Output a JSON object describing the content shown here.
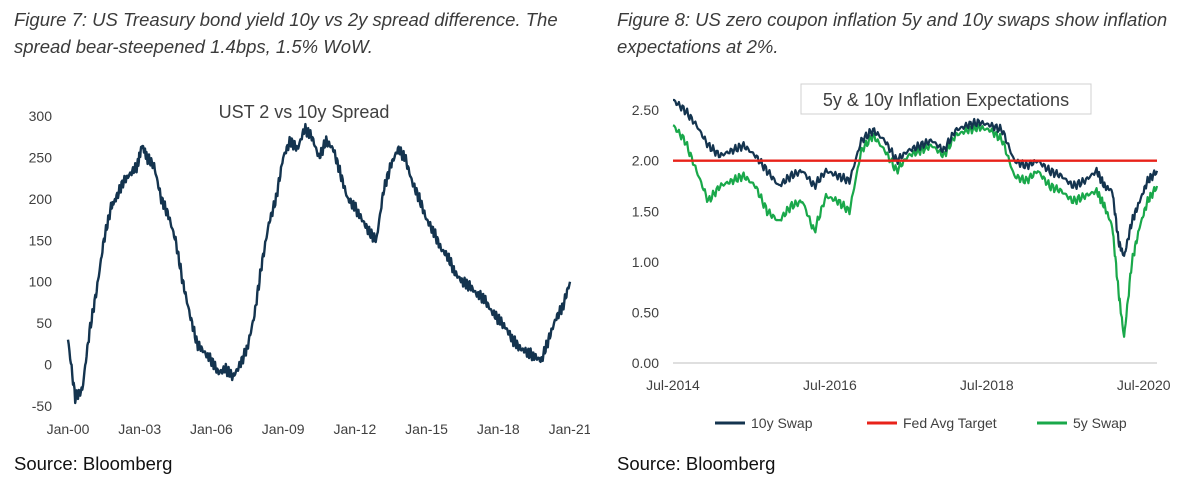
{
  "figures": [
    {
      "caption": "Figure 7: US Treasury bond yield 10y vs 2y spread difference. The spread bear-steepened 1.4bps, 1.5% WoW.",
      "source": "Source: Bloomberg"
    },
    {
      "caption": "Figure 8: US zero coupon inflation 5y and 10y swaps show inflation expectations at 2%.",
      "source": "Source: Bloomberg"
    }
  ],
  "chart_data": [
    {
      "type": "line",
      "title": "UST 2 vs 10y Spread",
      "xlabel": "",
      "ylabel": "",
      "x_ticks": [
        "Jan-00",
        "Jan-03",
        "Jan-06",
        "Jan-09",
        "Jan-12",
        "Jan-15",
        "Jan-18",
        "Jan-21"
      ],
      "y_ticks": [
        "-50",
        "0",
        "50",
        "100",
        "150",
        "200",
        "250",
        "300"
      ],
      "xlim": [
        2000.0,
        2021.0
      ],
      "ylim": [
        -50,
        300
      ],
      "grid": false,
      "legend": "none",
      "series": [
        {
          "color": "#14344f",
          "x": [
            2000.0,
            2000.3,
            2000.6,
            2000.9,
            2001.2,
            2001.5,
            2001.8,
            2002.0,
            2002.3,
            2002.6,
            2002.9,
            2003.1,
            2003.3,
            2003.6,
            2003.9,
            2004.2,
            2004.5,
            2004.8,
            2005.1,
            2005.4,
            2005.7,
            2006.0,
            2006.3,
            2006.6,
            2006.9,
            2007.2,
            2007.5,
            2007.8,
            2008.1,
            2008.4,
            2008.7,
            2009.0,
            2009.3,
            2009.6,
            2009.9,
            2010.2,
            2010.5,
            2010.8,
            2011.1,
            2011.4,
            2011.7,
            2012.0,
            2012.3,
            2012.6,
            2012.9,
            2013.2,
            2013.5,
            2013.8,
            2014.1,
            2014.4,
            2014.7,
            2015.0,
            2015.3,
            2015.6,
            2015.9,
            2016.2,
            2016.5,
            2016.8,
            2017.1,
            2017.4,
            2017.7,
            2018.0,
            2018.3,
            2018.6,
            2018.9,
            2019.2,
            2019.5,
            2019.8,
            2020.1,
            2020.4,
            2020.7,
            2021.0
          ],
          "y": [
            30,
            -40,
            -30,
            40,
            90,
            150,
            190,
            200,
            220,
            230,
            240,
            265,
            250,
            240,
            200,
            180,
            150,
            100,
            60,
            25,
            15,
            5,
            -10,
            -5,
            -15,
            0,
            20,
            60,
            120,
            170,
            200,
            250,
            270,
            260,
            285,
            275,
            250,
            270,
            260,
            230,
            200,
            190,
            175,
            160,
            150,
            210,
            240,
            260,
            250,
            220,
            200,
            175,
            160,
            140,
            130,
            110,
            100,
            95,
            85,
            80,
            65,
            55,
            45,
            30,
            20,
            15,
            10,
            5,
            30,
            55,
            70,
            100
          ]
        }
      ]
    },
    {
      "type": "line",
      "title": "5y & 10y Inflation Expectations",
      "xlabel": "",
      "ylabel": "",
      "x_ticks": [
        "Jul-2014",
        "Jul-2016",
        "Jul-2018",
        "Jul-2020"
      ],
      "y_ticks": [
        "0.00",
        "0.50",
        "1.00",
        "1.50",
        "2.00",
        "2.50"
      ],
      "xlim": [
        2014.5,
        2020.67
      ],
      "ylim": [
        0.0,
        2.6
      ],
      "grid": false,
      "legend": "bottom",
      "series": [
        {
          "name": "10y Swap",
          "color": "#14344f",
          "x": [
            2014.5,
            2014.65,
            2014.8,
            2014.95,
            2015.1,
            2015.25,
            2015.4,
            2015.55,
            2015.7,
            2015.85,
            2016.0,
            2016.15,
            2016.3,
            2016.45,
            2016.6,
            2016.75,
            2016.9,
            2017.05,
            2017.2,
            2017.35,
            2017.5,
            2017.65,
            2017.8,
            2017.95,
            2018.1,
            2018.25,
            2018.4,
            2018.55,
            2018.7,
            2018.85,
            2019.0,
            2019.15,
            2019.3,
            2019.45,
            2019.6,
            2019.75,
            2019.9,
            2020.0,
            2020.1,
            2020.18,
            2020.25,
            2020.35,
            2020.45,
            2020.55,
            2020.67
          ],
          "y": [
            2.6,
            2.5,
            2.35,
            2.15,
            2.05,
            2.1,
            2.15,
            2.05,
            1.9,
            1.75,
            1.85,
            1.9,
            1.75,
            1.9,
            1.85,
            1.8,
            2.2,
            2.3,
            2.2,
            2.0,
            2.1,
            2.15,
            2.2,
            2.1,
            2.3,
            2.35,
            2.38,
            2.35,
            2.3,
            2.0,
            1.95,
            2.0,
            1.9,
            1.85,
            1.75,
            1.8,
            1.9,
            1.75,
            1.7,
            1.2,
            1.05,
            1.4,
            1.6,
            1.8,
            1.9
          ]
        },
        {
          "name": "Fed Avg Target",
          "color": "#e8221a",
          "x": [
            2014.5,
            2020.67
          ],
          "y": [
            2.0,
            2.0
          ]
        },
        {
          "name": "5y Swap",
          "color": "#19a84a",
          "x": [
            2014.5,
            2014.65,
            2014.8,
            2014.95,
            2015.1,
            2015.25,
            2015.4,
            2015.55,
            2015.7,
            2015.85,
            2016.0,
            2016.15,
            2016.3,
            2016.45,
            2016.6,
            2016.75,
            2016.9,
            2017.05,
            2017.2,
            2017.35,
            2017.5,
            2017.65,
            2017.8,
            2017.95,
            2018.1,
            2018.25,
            2018.4,
            2018.55,
            2018.7,
            2018.85,
            2019.0,
            2019.15,
            2019.3,
            2019.45,
            2019.6,
            2019.75,
            2019.9,
            2020.0,
            2020.1,
            2020.18,
            2020.25,
            2020.35,
            2020.45,
            2020.55,
            2020.67
          ],
          "y": [
            2.35,
            2.2,
            1.9,
            1.6,
            1.75,
            1.8,
            1.85,
            1.75,
            1.5,
            1.4,
            1.55,
            1.6,
            1.3,
            1.65,
            1.6,
            1.5,
            2.1,
            2.25,
            2.1,
            1.9,
            2.05,
            2.1,
            2.15,
            2.05,
            2.25,
            2.3,
            2.33,
            2.3,
            2.2,
            1.85,
            1.8,
            1.9,
            1.75,
            1.7,
            1.6,
            1.65,
            1.7,
            1.55,
            1.35,
            0.7,
            0.25,
            1.0,
            1.35,
            1.6,
            1.75
          ]
        }
      ]
    }
  ]
}
